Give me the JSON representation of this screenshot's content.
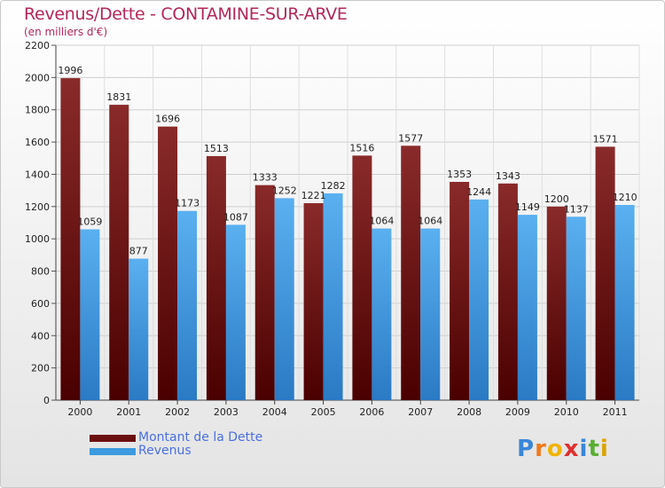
{
  "header": {
    "title": "Revenus/Dette - CONTAMINE-SUR-ARVE",
    "subtitle": "(en milliers d'€)"
  },
  "chart_data": {
    "type": "bar",
    "categories": [
      "2000",
      "2001",
      "2002",
      "2003",
      "2004",
      "2005",
      "2006",
      "2007",
      "2008",
      "2009",
      "2010",
      "2011"
    ],
    "series": [
      {
        "name": "Montant de la Dette",
        "color": "#7a1a1a",
        "values": [
          1996,
          1831,
          1696,
          1513,
          1333,
          1221,
          1516,
          1577,
          1353,
          1343,
          1200,
          1571
        ]
      },
      {
        "name": "Revenus",
        "color": "#3d9be0",
        "values": [
          1059,
          877,
          1173,
          1087,
          1252,
          1282,
          1064,
          1064,
          1244,
          1149,
          1137,
          1210
        ]
      }
    ],
    "ylim": [
      0,
      2200
    ],
    "yticks": [
      0,
      200,
      400,
      600,
      800,
      1000,
      1200,
      1400,
      1600,
      1800,
      2000,
      2200
    ],
    "grid": true,
    "legend_position": "bottom-left"
  },
  "legend": {
    "items": [
      {
        "label": "Montant de la Dette",
        "color": "#6b0f0f"
      },
      {
        "label": "Revenus",
        "color": "#3d9be0"
      }
    ]
  },
  "logo": {
    "letters": [
      {
        "ch": "P",
        "color": "#3a86d8"
      },
      {
        "ch": "r",
        "color": "#f07a1a"
      },
      {
        "ch": "o",
        "color": "#f0b400"
      },
      {
        "ch": "x",
        "color": "#e03030"
      },
      {
        "ch": "i",
        "color": "#3a86d8"
      },
      {
        "ch": "t",
        "color": "#5aae34"
      },
      {
        "ch": "i",
        "color": "#d9a400"
      }
    ]
  }
}
